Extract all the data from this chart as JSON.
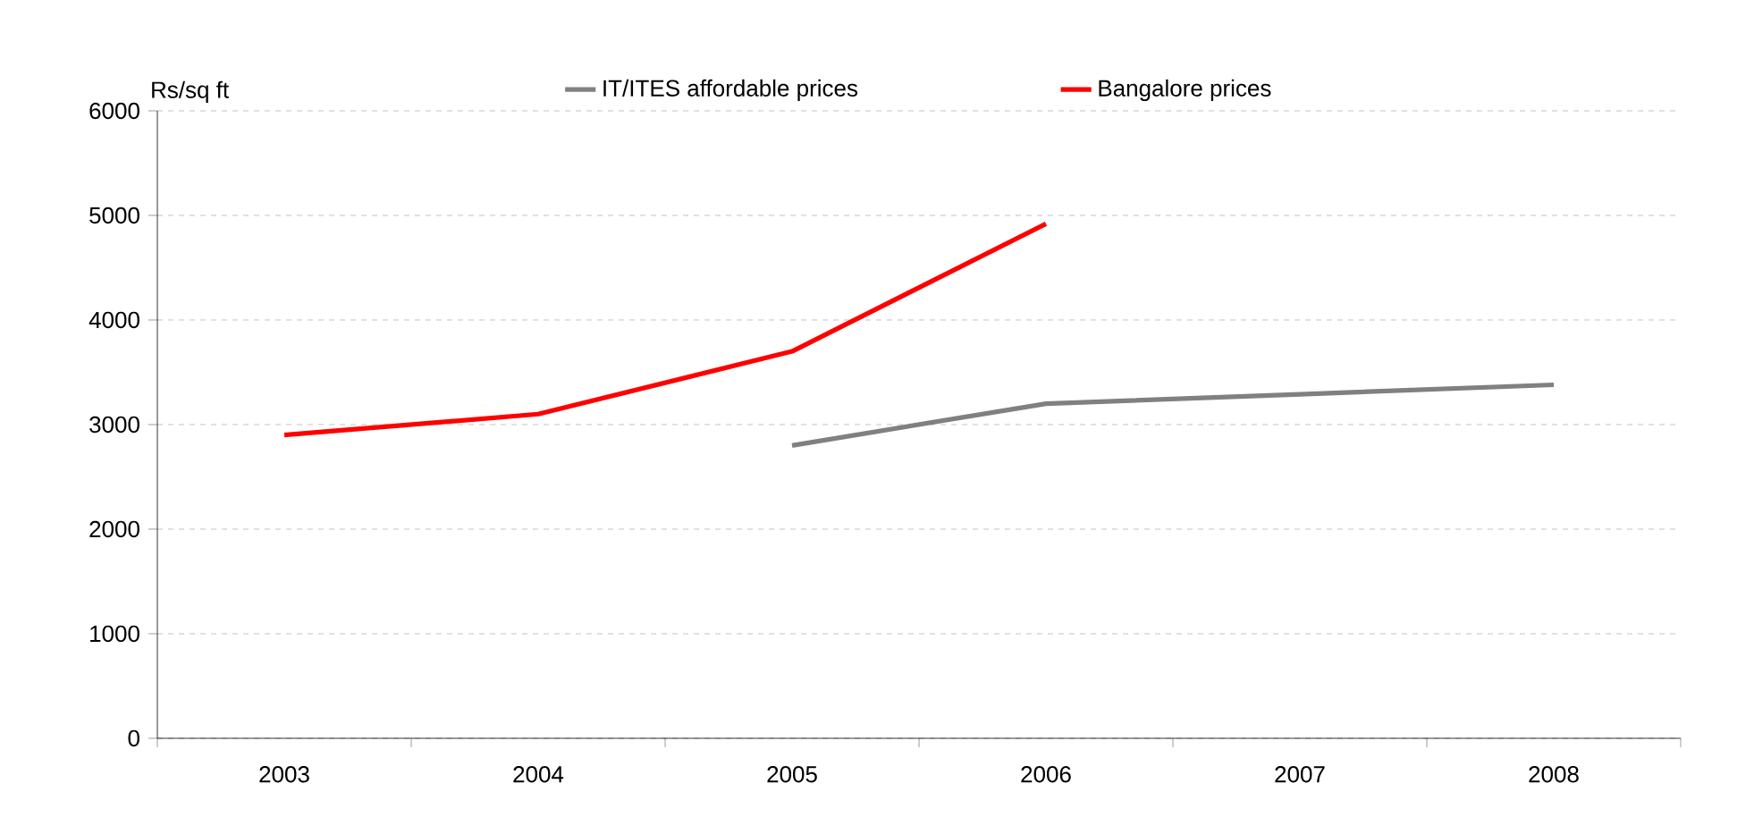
{
  "chart_data": {
    "type": "line",
    "ylabel": "Rs/sq ft",
    "categories": [
      "2003",
      "2004",
      "2005",
      "2006",
      "2007",
      "2008"
    ],
    "series": [
      {
        "name": "IT/ITES affordable prices",
        "color": "#808080",
        "values": [
          null,
          null,
          2800,
          3200,
          3290,
          3380
        ]
      },
      {
        "name": "Bangalore prices",
        "color": "#ff0000",
        "values": [
          2900,
          3100,
          3700,
          4920,
          null,
          null
        ]
      }
    ],
    "ylim": [
      0,
      6000
    ],
    "yticks": [
      0,
      1000,
      2000,
      3000,
      4000,
      5000,
      6000
    ],
    "grid": "y",
    "legend": "top",
    "marker": "none",
    "line_style": "solid"
  }
}
